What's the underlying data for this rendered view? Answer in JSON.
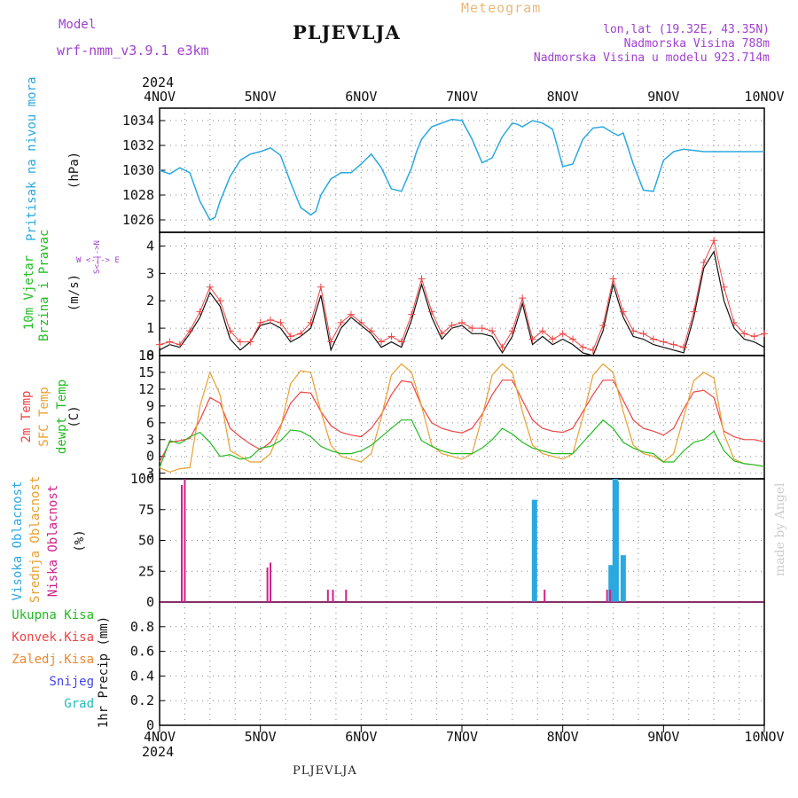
{
  "header": {
    "model_label": "Model",
    "model_name": "wrf-nmm_v3.9.1 e3km",
    "station": "PLJEVLJA",
    "title": "Meteogram",
    "lonlat": "lon,lat (19.32E, 43.35N)",
    "altitude": "Nadmorska Visina 788m",
    "model_altitude": "Nadmorska Visina u modelu 923.714m",
    "year": "2024"
  },
  "footer": {
    "station": "PLJEVLJA",
    "credit": "made by Angel"
  },
  "time_axis": {
    "days": [
      "4NOV",
      "5NOV",
      "6NOV",
      "7NOV",
      "8NOV",
      "9NOV",
      "10NOV"
    ]
  },
  "colors": {
    "pressure": "#2aa8e0",
    "wind": "#ee4444",
    "wind_obs": "#111111",
    "t2m": "#ee4444",
    "tsfc": "#e8a030",
    "dewpt": "#22bb22",
    "cloud_high": "#2aa8e0",
    "cloud_low": "#d0208a",
    "grid": "#888888"
  },
  "chart_data": [
    {
      "type": "line",
      "label": "Pritisak na nivou mora",
      "ylabel": "(hPa)",
      "yticks": [
        "1026",
        "1028",
        "1030",
        "1032",
        "1034"
      ],
      "ylim": [
        1025,
        1035
      ],
      "x": [
        0,
        0.1,
        0.2,
        0.3,
        0.4,
        0.5,
        0.55,
        0.6,
        0.7,
        0.8,
        0.9,
        1.0,
        1.1,
        1.2,
        1.3,
        1.4,
        1.5,
        1.55,
        1.6,
        1.7,
        1.8,
        1.9,
        2.0,
        2.1,
        2.2,
        2.3,
        2.4,
        2.5,
        2.55,
        2.6,
        2.7,
        2.8,
        2.9,
        3.0,
        3.1,
        3.2,
        3.3,
        3.4,
        3.5,
        3.55,
        3.6,
        3.7,
        3.8,
        3.9,
        4.0,
        4.1,
        4.2,
        4.3,
        4.4,
        4.5,
        4.55,
        4.6,
        4.7,
        4.8,
        4.9,
        5.0,
        5.1,
        5.2,
        5.3,
        5.4,
        5.5,
        5.55,
        5.6,
        5.7,
        5.8,
        5.9,
        6.0
      ],
      "values": [
        1030,
        1029.7,
        1030.2,
        1029.8,
        1027.5,
        1026,
        1026.2,
        1027.5,
        1029.5,
        1030.8,
        1031.3,
        1031.5,
        1031.8,
        1031.2,
        1029,
        1027,
        1026.4,
        1026.7,
        1028,
        1029.3,
        1029.8,
        1029.8,
        1030.5,
        1031.3,
        1030.2,
        1028.5,
        1028.3,
        1030.2,
        1031.5,
        1032.5,
        1033.5,
        1033.8,
        1034.1,
        1034,
        1032.5,
        1030.6,
        1031,
        1032.7,
        1033.8,
        1033.7,
        1033.5,
        1034,
        1033.8,
        1033.3,
        1030.3,
        1030.5,
        1032.5,
        1033.4,
        1033.5,
        1033,
        1032.8,
        1033,
        1030.5,
        1028.4,
        1028.3,
        1030.8,
        1031.5,
        1031.7,
        1031.6,
        1031.5,
        1031.5,
        1031.5,
        1031.5,
        1031.5,
        1031.5,
        1031.5,
        1031.5
      ]
    },
    {
      "type": "line",
      "label": "10m Vjetar",
      "label2": "Brzina i Pravac",
      "ylabel": "(m/s)",
      "compass_ns": "S<-|->N",
      "compass_we": "W <-|-> E",
      "yticks": [
        "0",
        "1",
        "2",
        "3",
        "4"
      ],
      "ylim": [
        0,
        4.5
      ],
      "x": [
        0,
        0.1,
        0.2,
        0.3,
        0.4,
        0.5,
        0.6,
        0.7,
        0.8,
        0.9,
        1.0,
        1.1,
        1.2,
        1.3,
        1.4,
        1.5,
        1.6,
        1.7,
        1.8,
        1.9,
        2.0,
        2.1,
        2.2,
        2.3,
        2.4,
        2.5,
        2.6,
        2.7,
        2.8,
        2.9,
        3.0,
        3.1,
        3.2,
        3.3,
        3.4,
        3.5,
        3.6,
        3.7,
        3.8,
        3.9,
        4.0,
        4.1,
        4.2,
        4.3,
        4.4,
        4.5,
        4.6,
        4.7,
        4.8,
        4.9,
        5.0,
        5.1,
        5.2,
        5.3,
        5.4,
        5.5,
        5.6,
        5.7,
        5.8,
        5.9,
        6.0
      ],
      "values": [
        0.4,
        0.5,
        0.4,
        0.9,
        1.6,
        2.5,
        2.0,
        0.9,
        0.5,
        0.5,
        1.2,
        1.3,
        1.2,
        0.7,
        0.8,
        1.2,
        2.5,
        0.5,
        1.2,
        1.5,
        1.2,
        0.9,
        0.5,
        0.7,
        0.5,
        1.5,
        2.8,
        1.6,
        0.8,
        1.1,
        1.2,
        1.0,
        1.0,
        0.9,
        0.3,
        0.9,
        2.1,
        0.6,
        0.9,
        0.6,
        0.8,
        0.6,
        0.3,
        0.2,
        1.1,
        2.8,
        1.6,
        0.9,
        0.8,
        0.6,
        0.5,
        0.4,
        0.3,
        1.6,
        3.4,
        4.2,
        2.5,
        1.2,
        0.8,
        0.7,
        0.8
      ],
      "obs_values": [
        0.2,
        0.4,
        0.3,
        0.8,
        1.4,
        2.3,
        1.8,
        0.6,
        0.2,
        0.5,
        1.1,
        1.2,
        1.0,
        0.5,
        0.7,
        1.0,
        2.2,
        0.2,
        1.0,
        1.4,
        1.1,
        0.8,
        0.3,
        0.5,
        0.3,
        1.3,
        2.6,
        1.4,
        0.6,
        1.0,
        1.1,
        0.8,
        0.8,
        0.7,
        0.1,
        0.7,
        1.9,
        0.4,
        0.7,
        0.4,
        0.6,
        0.4,
        0.1,
        0.0,
        0.9,
        2.6,
        1.4,
        0.7,
        0.6,
        0.4,
        0.3,
        0.2,
        0.1,
        1.4,
        3.2,
        3.8,
        2.0,
        1.0,
        0.6,
        0.5,
        0.3
      ]
    },
    {
      "type": "line",
      "labels": [
        "2m Temp",
        "SFC Temp",
        "dewpt Temp"
      ],
      "ylabel": "(C)",
      "yticks": [
        "-3",
        "0",
        "3",
        "6",
        "9",
        "12",
        "15",
        "18"
      ],
      "ylim": [
        -4,
        18
      ],
      "x": [
        0,
        0.1,
        0.2,
        0.3,
        0.4,
        0.5,
        0.6,
        0.7,
        0.8,
        0.9,
        1.0,
        1.1,
        1.2,
        1.3,
        1.4,
        1.5,
        1.6,
        1.7,
        1.8,
        1.9,
        2.0,
        2.1,
        2.2,
        2.3,
        2.4,
        2.5,
        2.6,
        2.7,
        2.8,
        2.9,
        3.0,
        3.1,
        3.2,
        3.3,
        3.4,
        3.5,
        3.6,
        3.7,
        3.8,
        3.9,
        4.0,
        4.1,
        4.2,
        4.3,
        4.4,
        4.5,
        4.6,
        4.7,
        4.8,
        4.9,
        5.0,
        5.1,
        5.2,
        5.3,
        5.4,
        5.5,
        5.6,
        5.7,
        5.8,
        5.9,
        6.0
      ],
      "series": [
        {
          "name": "2m Temp",
          "values": [
            -1,
            2.5,
            2.8,
            3.2,
            6.5,
            10.5,
            9.5,
            5,
            3.5,
            2.2,
            1.2,
            2.5,
            5.5,
            9.5,
            11.5,
            11.3,
            8,
            5.5,
            4.3,
            3.8,
            3.5,
            5,
            7.5,
            11,
            13.5,
            13.2,
            9,
            6,
            5,
            4.5,
            4.2,
            5,
            7.5,
            11,
            13.6,
            13.6,
            10,
            6.5,
            5,
            4.5,
            4.3,
            5,
            8,
            11,
            13.6,
            13.6,
            10,
            6.5,
            5,
            4.5,
            3.8,
            5,
            8.5,
            11.5,
            11.8,
            10.5,
            4.5,
            3.5,
            3,
            3,
            2.6
          ]
        },
        {
          "name": "SFC Temp",
          "values": [
            -2,
            -2.8,
            -2.2,
            -2,
            9,
            15,
            11,
            1,
            0,
            -1,
            -1,
            0.5,
            5,
            13,
            15.3,
            15,
            8,
            2,
            0,
            -0.5,
            -1,
            0.5,
            7,
            14.5,
            16.5,
            15,
            9,
            2,
            0.5,
            0,
            -0.5,
            0.5,
            7,
            14.5,
            16.5,
            15,
            8,
            2,
            0.5,
            0,
            -0.5,
            0.5,
            7,
            14.5,
            16.5,
            15,
            8,
            2,
            0.5,
            0,
            -1,
            0.5,
            7,
            13.5,
            15,
            14,
            4,
            -0.5,
            -1.3,
            -1.5,
            -1.8
          ]
        },
        {
          "name": "dewpt Temp",
          "values": [
            -2,
            2.8,
            2.3,
            3.5,
            4.3,
            2.5,
            0,
            0.3,
            -0.5,
            -0.2,
            1.5,
            1.8,
            2.8,
            4.7,
            4.5,
            3.5,
            1.8,
            1,
            0.5,
            0.5,
            1,
            2,
            3.5,
            5,
            6.5,
            6.5,
            2.8,
            1.8,
            1,
            0.5,
            0.5,
            0.5,
            1.5,
            3,
            5,
            4,
            2.5,
            1.5,
            1,
            0.5,
            0.5,
            0.5,
            2.5,
            4.5,
            6.5,
            5,
            2.5,
            1.5,
            0.8,
            0.5,
            -1,
            -1,
            1,
            2.5,
            3,
            4.5,
            1,
            -0.8,
            -1.3,
            -1.5,
            -1.8
          ]
        }
      ]
    },
    {
      "type": "bar",
      "labels": [
        "Visoka Oblacnost",
        "Srednja Oblacnost",
        "Niska Oblacnost"
      ],
      "ylabel": "(%)",
      "yticks": [
        "0",
        "25",
        "50",
        "75",
        "100"
      ],
      "ylim": [
        0,
        100
      ],
      "series": [
        {
          "name": "Visoka Oblacnost",
          "x": [
            3.72,
            4.48,
            4.52,
            4.53,
            4.6
          ],
          "values": [
            83,
            30,
            100,
            98,
            38
          ]
        },
        {
          "name": "Niska Oblacnost",
          "x": [
            0.22,
            0.25,
            1.07,
            1.1,
            1.67,
            1.72,
            1.85,
            1.88,
            3.82,
            4.44,
            4.47,
            5.27,
            5.3,
            5.4
          ],
          "values": [
            95,
            100,
            28,
            32,
            10,
            10,
            10,
            7,
            10,
            10,
            10,
            7,
            7,
            4
          ]
        }
      ]
    },
    {
      "type": "bar",
      "legend": [
        "Ukupna Kisa",
        "Konvek.Kisa",
        "Zaledj.Kisa",
        "Snijeg",
        "Grad"
      ],
      "ylabel": "1hr Precip (mm)",
      "yticks": [
        "0",
        "0.2",
        "0.4",
        "0.6",
        "0.8"
      ],
      "ylim": [
        0,
        1.0
      ],
      "values": []
    }
  ]
}
